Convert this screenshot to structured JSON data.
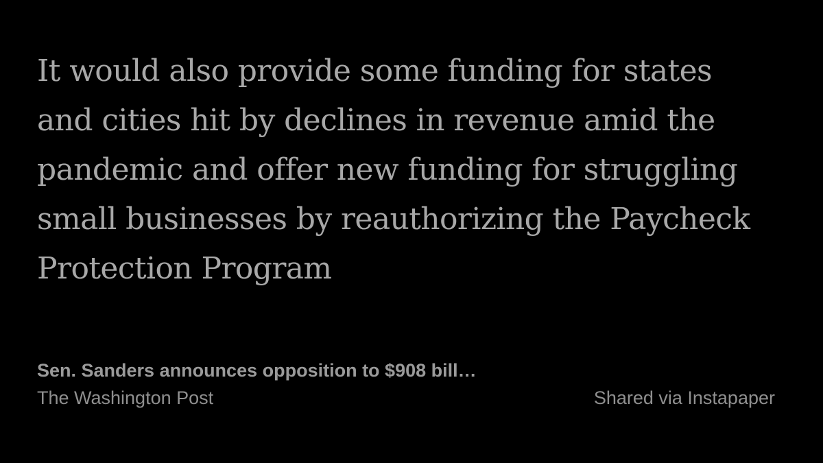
{
  "quote": {
    "lines": [
      "It would also provide some funding for states",
      "and cities hit by declines in revenue amid the",
      "pandemic and offer new funding for struggling",
      "small businesses by reauthorizing the Paycheck",
      "Protection Program"
    ]
  },
  "article": {
    "title": "Sen. Sanders announces opposition to $908 bill…",
    "source": "The Washington Post"
  },
  "footer": {
    "shared_text": "Shared via Instapaper"
  },
  "colors": {
    "background": "#000000",
    "quote_text": "#a8a8a8",
    "meta_text": "#8f8f8f"
  }
}
